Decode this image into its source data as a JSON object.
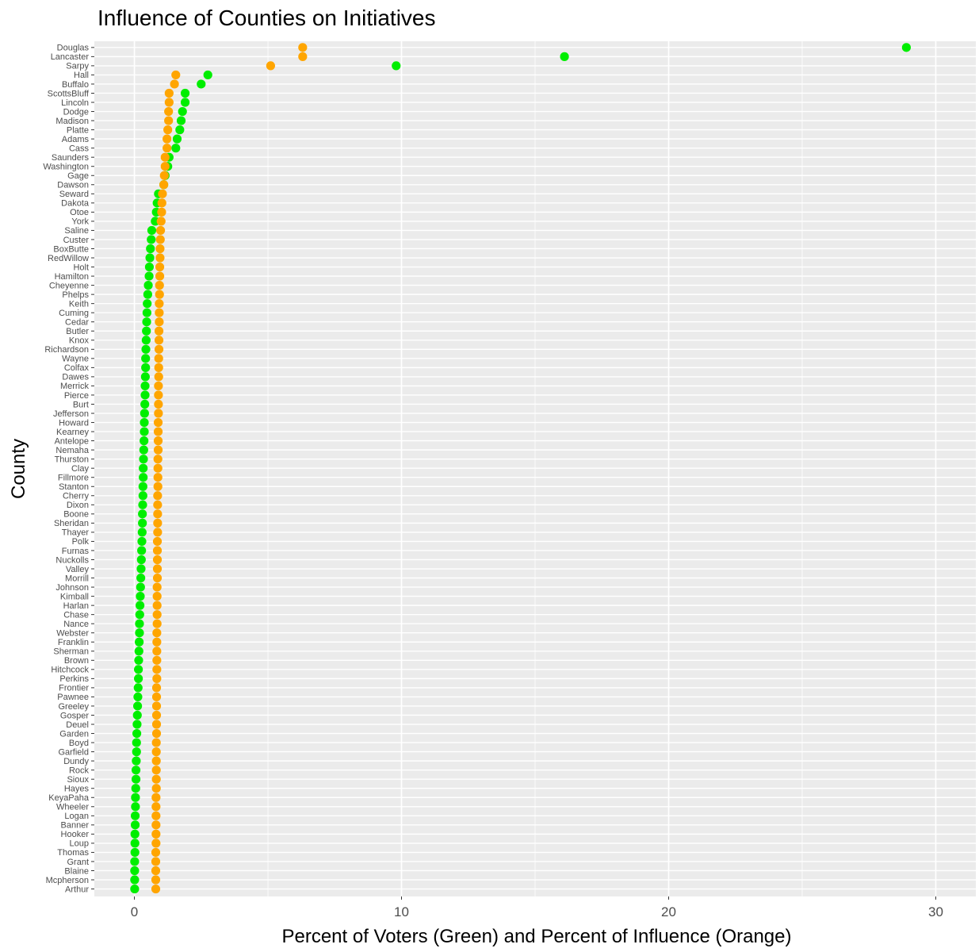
{
  "chart_data": {
    "type": "scatter",
    "title": "Influence of Counties on Initiatives",
    "xlabel": "Percent of Voters (Green) and Percent of Influence (Orange)",
    "ylabel": "County",
    "xlim": [
      -1.5,
      31.5
    ],
    "x_ticks": [
      0,
      10,
      20,
      30
    ],
    "x_tick_labels": [
      "0",
      "10",
      "20",
      "30"
    ],
    "grid": true,
    "colors": {
      "voters": "#00EE00",
      "influence": "#FFA500",
      "panel": "#EBEBEB",
      "grid": "#FFFFFF"
    },
    "categories": [
      "Douglas",
      "Lancaster",
      "Sarpy",
      "Hall",
      "Buffalo",
      "ScottsBluff",
      "Lincoln",
      "Dodge",
      "Madison",
      "Platte",
      "Adams",
      "Cass",
      "Saunders",
      "Washington",
      "Gage",
      "Dawson",
      "Seward",
      "Dakota",
      "Otoe",
      "York",
      "Saline",
      "Custer",
      "BoxButte",
      "RedWillow",
      "Holt",
      "Hamilton",
      "Cheyenne",
      "Phelps",
      "Keith",
      "Cuming",
      "Cedar",
      "Butler",
      "Knox",
      "Richardson",
      "Wayne",
      "Colfax",
      "Dawes",
      "Merrick",
      "Pierce",
      "Burt",
      "Jefferson",
      "Howard",
      "Kearney",
      "Antelope",
      "Nemaha",
      "Thurston",
      "Clay",
      "Fillmore",
      "Stanton",
      "Cherry",
      "Dixon",
      "Boone",
      "Sheridan",
      "Thayer",
      "Polk",
      "Furnas",
      "Nuckolls",
      "Valley",
      "Morrill",
      "Johnson",
      "Kimball",
      "Harlan",
      "Chase",
      "Nance",
      "Webster",
      "Franklin",
      "Sherman",
      "Brown",
      "Hitchcock",
      "Perkins",
      "Frontier",
      "Pawnee",
      "Greeley",
      "Gosper",
      "Deuel",
      "Garden",
      "Boyd",
      "Garfield",
      "Dundy",
      "Rock",
      "Sioux",
      "Hayes",
      "KeyaPaha",
      "Wheeler",
      "Logan",
      "Banner",
      "Hooker",
      "Loup",
      "Thomas",
      "Grant",
      "Blaine",
      "Mcpherson",
      "Arthur"
    ],
    "series": [
      {
        "name": "Percent of Voters",
        "color": "#00EE00",
        "values": [
          28.9,
          16.1,
          9.8,
          2.75,
          2.5,
          1.9,
          1.9,
          1.8,
          1.75,
          1.7,
          1.6,
          1.55,
          1.3,
          1.25,
          1.15,
          1.1,
          0.9,
          0.85,
          0.82,
          0.78,
          0.65,
          0.63,
          0.6,
          0.58,
          0.56,
          0.55,
          0.52,
          0.5,
          0.48,
          0.47,
          0.46,
          0.45,
          0.44,
          0.43,
          0.42,
          0.42,
          0.41,
          0.4,
          0.4,
          0.39,
          0.38,
          0.37,
          0.37,
          0.36,
          0.35,
          0.34,
          0.33,
          0.33,
          0.32,
          0.32,
          0.31,
          0.3,
          0.3,
          0.29,
          0.28,
          0.27,
          0.26,
          0.25,
          0.24,
          0.23,
          0.22,
          0.21,
          0.2,
          0.19,
          0.19,
          0.18,
          0.17,
          0.16,
          0.15,
          0.15,
          0.14,
          0.13,
          0.12,
          0.11,
          0.1,
          0.09,
          0.08,
          0.08,
          0.07,
          0.06,
          0.06,
          0.05,
          0.04,
          0.04,
          0.03,
          0.03,
          0.02,
          0.02,
          0.02,
          0.01,
          0.01,
          0.01,
          0.01
        ]
      },
      {
        "name": "Percent of Influence",
        "color": "#FFA500",
        "values": [
          6.3,
          6.3,
          5.1,
          1.55,
          1.5,
          1.3,
          1.3,
          1.28,
          1.28,
          1.25,
          1.22,
          1.22,
          1.15,
          1.15,
          1.12,
          1.1,
          1.05,
          1.03,
          1.02,
          1.0,
          0.98,
          0.97,
          0.96,
          0.96,
          0.95,
          0.95,
          0.94,
          0.94,
          0.93,
          0.93,
          0.93,
          0.92,
          0.92,
          0.92,
          0.91,
          0.91,
          0.91,
          0.9,
          0.9,
          0.9,
          0.9,
          0.89,
          0.89,
          0.89,
          0.89,
          0.88,
          0.88,
          0.88,
          0.88,
          0.87,
          0.87,
          0.87,
          0.87,
          0.87,
          0.86,
          0.86,
          0.86,
          0.86,
          0.86,
          0.85,
          0.85,
          0.85,
          0.85,
          0.85,
          0.84,
          0.84,
          0.84,
          0.84,
          0.84,
          0.84,
          0.83,
          0.83,
          0.83,
          0.83,
          0.83,
          0.83,
          0.82,
          0.82,
          0.82,
          0.82,
          0.82,
          0.82,
          0.81,
          0.81,
          0.81,
          0.81,
          0.81,
          0.81,
          0.8,
          0.8,
          0.8,
          0.8,
          0.8
        ]
      }
    ]
  }
}
